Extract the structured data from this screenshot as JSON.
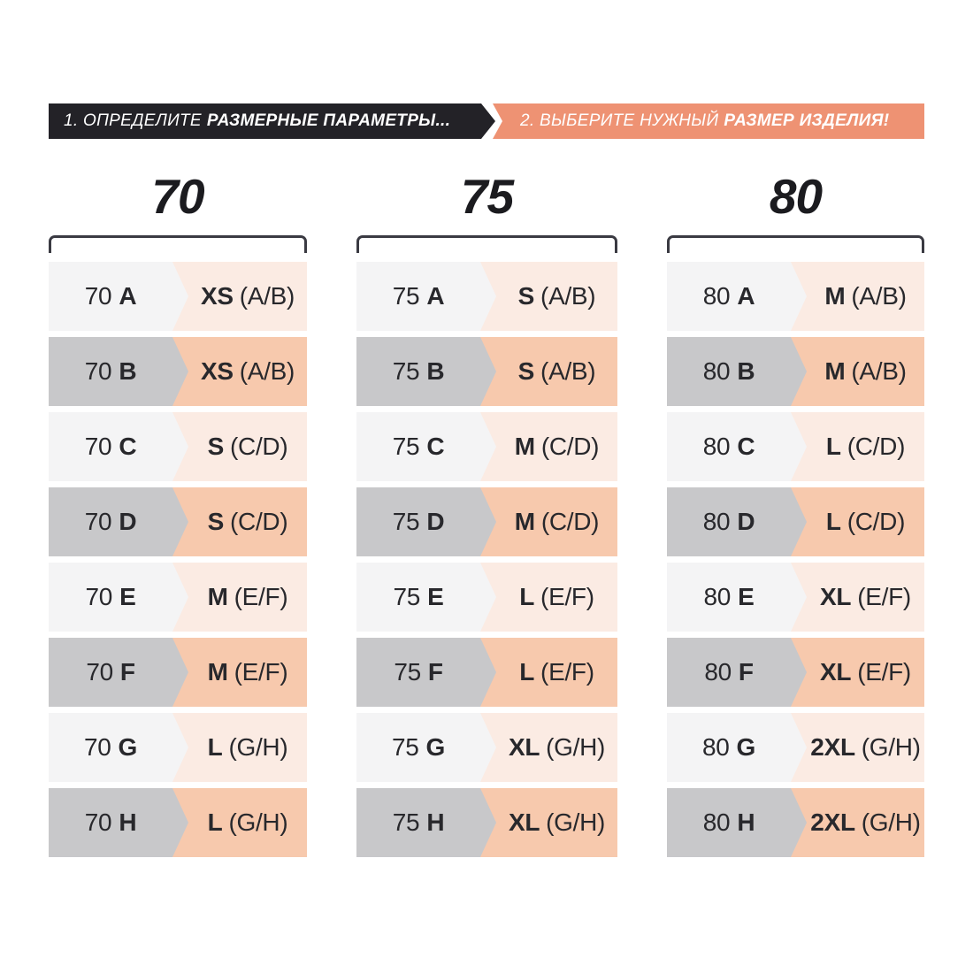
{
  "banners": {
    "step1": {
      "prefix": "1. ОПРЕДЕЛИТЕ",
      "emphasis": "РАЗМЕРНЫЕ ПАРАМЕТРЫ..."
    },
    "step2": {
      "prefix": "2. ВЫБЕРИТЕ НУЖНЫЙ",
      "emphasis": "РАЗМЕР ИЗДЕЛИЯ!"
    }
  },
  "colors": {
    "banner_black": "#232227",
    "banner_salmon": "#ee9273",
    "banner_text": "#ffffff",
    "row_light_left": "#f4f4f5",
    "row_light_right": "#fbebe3",
    "row_dark_left": "#c8c8ca",
    "row_dark_right": "#f7c9ad",
    "bracket": "#3a3a42",
    "text": "#28282c",
    "page_bg": "#ffffff"
  },
  "columns": [
    {
      "header": "70",
      "rows": [
        {
          "band": "70",
          "cup": "A",
          "size": "XS",
          "range": "(A/B)"
        },
        {
          "band": "70",
          "cup": "B",
          "size": "XS",
          "range": "(A/B)"
        },
        {
          "band": "70",
          "cup": "C",
          "size": "S",
          "range": "(C/D)"
        },
        {
          "band": "70",
          "cup": "D",
          "size": "S",
          "range": "(C/D)"
        },
        {
          "band": "70",
          "cup": "E",
          "size": "M",
          "range": "(E/F)"
        },
        {
          "band": "70",
          "cup": "F",
          "size": "M",
          "range": "(E/F)"
        },
        {
          "band": "70",
          "cup": "G",
          "size": "L",
          "range": "(G/H)"
        },
        {
          "band": "70",
          "cup": "H",
          "size": "L",
          "range": "(G/H)"
        }
      ]
    },
    {
      "header": "75",
      "rows": [
        {
          "band": "75",
          "cup": "A",
          "size": "S",
          "range": "(A/B)"
        },
        {
          "band": "75",
          "cup": "B",
          "size": "S",
          "range": "(A/B)"
        },
        {
          "band": "75",
          "cup": "C",
          "size": "M",
          "range": "(C/D)"
        },
        {
          "band": "75",
          "cup": "D",
          "size": "M",
          "range": "(C/D)"
        },
        {
          "band": "75",
          "cup": "E",
          "size": "L",
          "range": "(E/F)"
        },
        {
          "band": "75",
          "cup": "F",
          "size": "L",
          "range": "(E/F)"
        },
        {
          "band": "75",
          "cup": "G",
          "size": "XL",
          "range": "(G/H)"
        },
        {
          "band": "75",
          "cup": "H",
          "size": "XL",
          "range": "(G/H)"
        }
      ]
    },
    {
      "header": "80",
      "rows": [
        {
          "band": "80",
          "cup": "A",
          "size": "M",
          "range": "(A/B)"
        },
        {
          "band": "80",
          "cup": "B",
          "size": "M",
          "range": "(A/B)"
        },
        {
          "band": "80",
          "cup": "C",
          "size": "L",
          "range": "(C/D)"
        },
        {
          "band": "80",
          "cup": "D",
          "size": "L",
          "range": "(C/D)"
        },
        {
          "band": "80",
          "cup": "E",
          "size": "XL",
          "range": "(E/F)"
        },
        {
          "band": "80",
          "cup": "F",
          "size": "XL",
          "range": "(E/F)"
        },
        {
          "band": "80",
          "cup": "G",
          "size": "2XL",
          "range": "(G/H)"
        },
        {
          "band": "80",
          "cup": "H",
          "size": "2XL",
          "range": "(G/H)"
        }
      ]
    }
  ],
  "chart_data": {
    "type": "table",
    "steps": [
      "1. ОПРЕДЕЛИТЕ РАЗМЕРНЫЕ ПАРАМЕТРЫ...",
      "2. ВЫБЕРИТЕ НУЖНЫЙ РАЗМЕР ИЗДЕЛИЯ!"
    ],
    "groups": [
      {
        "band": "70",
        "pairs": [
          [
            "70 A",
            "XS (A/B)"
          ],
          [
            "70 B",
            "XS (A/B)"
          ],
          [
            "70 C",
            "S (C/D)"
          ],
          [
            "70 D",
            "S (C/D)"
          ],
          [
            "70 E",
            "M (E/F)"
          ],
          [
            "70 F",
            "M (E/F)"
          ],
          [
            "70 G",
            "L (G/H)"
          ],
          [
            "70 H",
            "L (G/H)"
          ]
        ]
      },
      {
        "band": "75",
        "pairs": [
          [
            "75 A",
            "S (A/B)"
          ],
          [
            "75 B",
            "S (A/B)"
          ],
          [
            "75 C",
            "M (C/D)"
          ],
          [
            "75 D",
            "M (C/D)"
          ],
          [
            "75 E",
            "L (E/F)"
          ],
          [
            "75 F",
            "L (E/F)"
          ],
          [
            "75 G",
            "XL (G/H)"
          ],
          [
            "75 H",
            "XL (G/H)"
          ]
        ]
      },
      {
        "band": "80",
        "pairs": [
          [
            "80 A",
            "M (A/B)"
          ],
          [
            "80 B",
            "M (A/B)"
          ],
          [
            "80 C",
            "L (C/D)"
          ],
          [
            "80 D",
            "L (C/D)"
          ],
          [
            "80 E",
            "XL (E/F)"
          ],
          [
            "80 F",
            "XL (E/F)"
          ],
          [
            "80 G",
            "2XL (G/H)"
          ],
          [
            "80 H",
            "2XL (G/H)"
          ]
        ]
      }
    ]
  }
}
